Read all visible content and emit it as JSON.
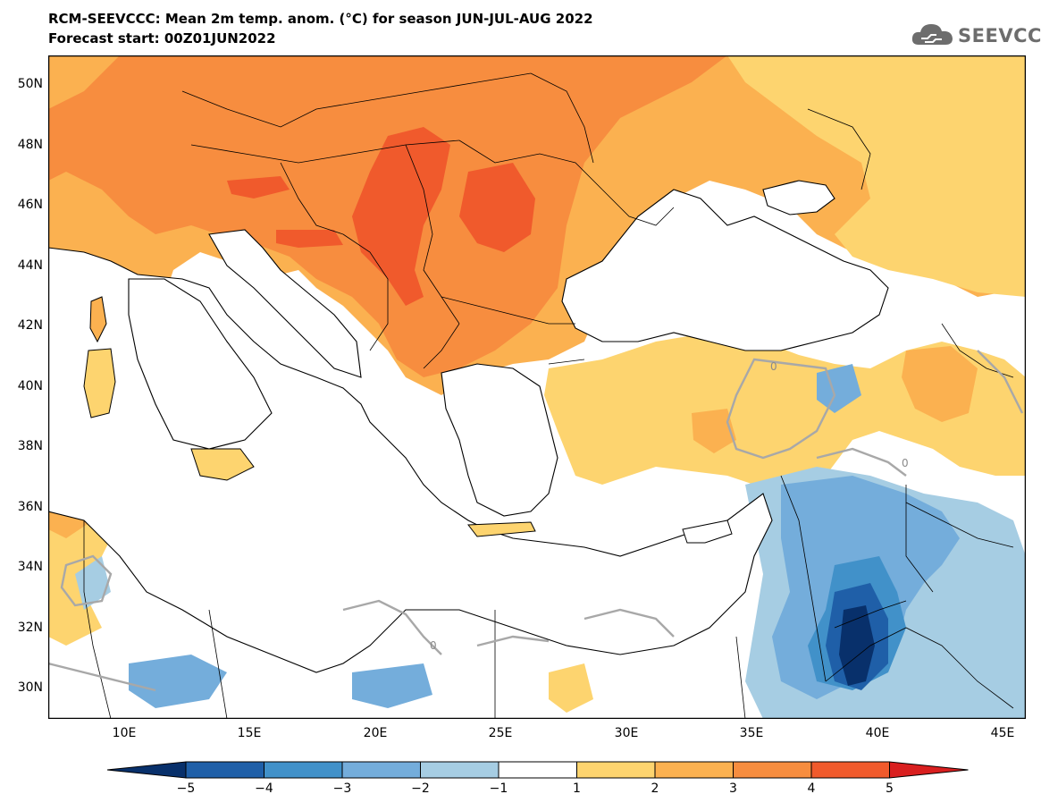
{
  "header": {
    "title_line1": "RCM-SEEVCCC: Mean 2m temp. anom. (°C) for season JUN-JUL-AUG 2022",
    "title_line2": "Forecast start: 00Z01JUN2022",
    "logo_text": "SEEVCCC",
    "logo_icon": "cloud-icon"
  },
  "map": {
    "lon_range": [
      7,
      45.5
    ],
    "lat_range": [
      29,
      51
    ],
    "lat_ticks": [
      "50N",
      "48N",
      "46N",
      "44N",
      "42N",
      "40N",
      "38N",
      "36N",
      "34N",
      "32N",
      "30N"
    ],
    "lon_ticks": [
      "10E",
      "15E",
      "20E",
      "25E",
      "30E",
      "35E",
      "40E",
      "45E"
    ],
    "contour_label": "0",
    "colors": {
      "sea": "#ffffff",
      "coast": "#000000",
      "contour_zero": "#a8a8a8"
    }
  },
  "colorbar": {
    "ticks": [
      "−5",
      "−4",
      "−3",
      "−2",
      "−1",
      "1",
      "2",
      "3",
      "4",
      "5"
    ],
    "colors": [
      "#08306b",
      "#1f5fa8",
      "#4191c9",
      "#74addb",
      "#a6cde3",
      "#ffffff",
      "#fdd46f",
      "#fbb150",
      "#f78d3f",
      "#f05a2c",
      "#d91f1f"
    ]
  }
}
